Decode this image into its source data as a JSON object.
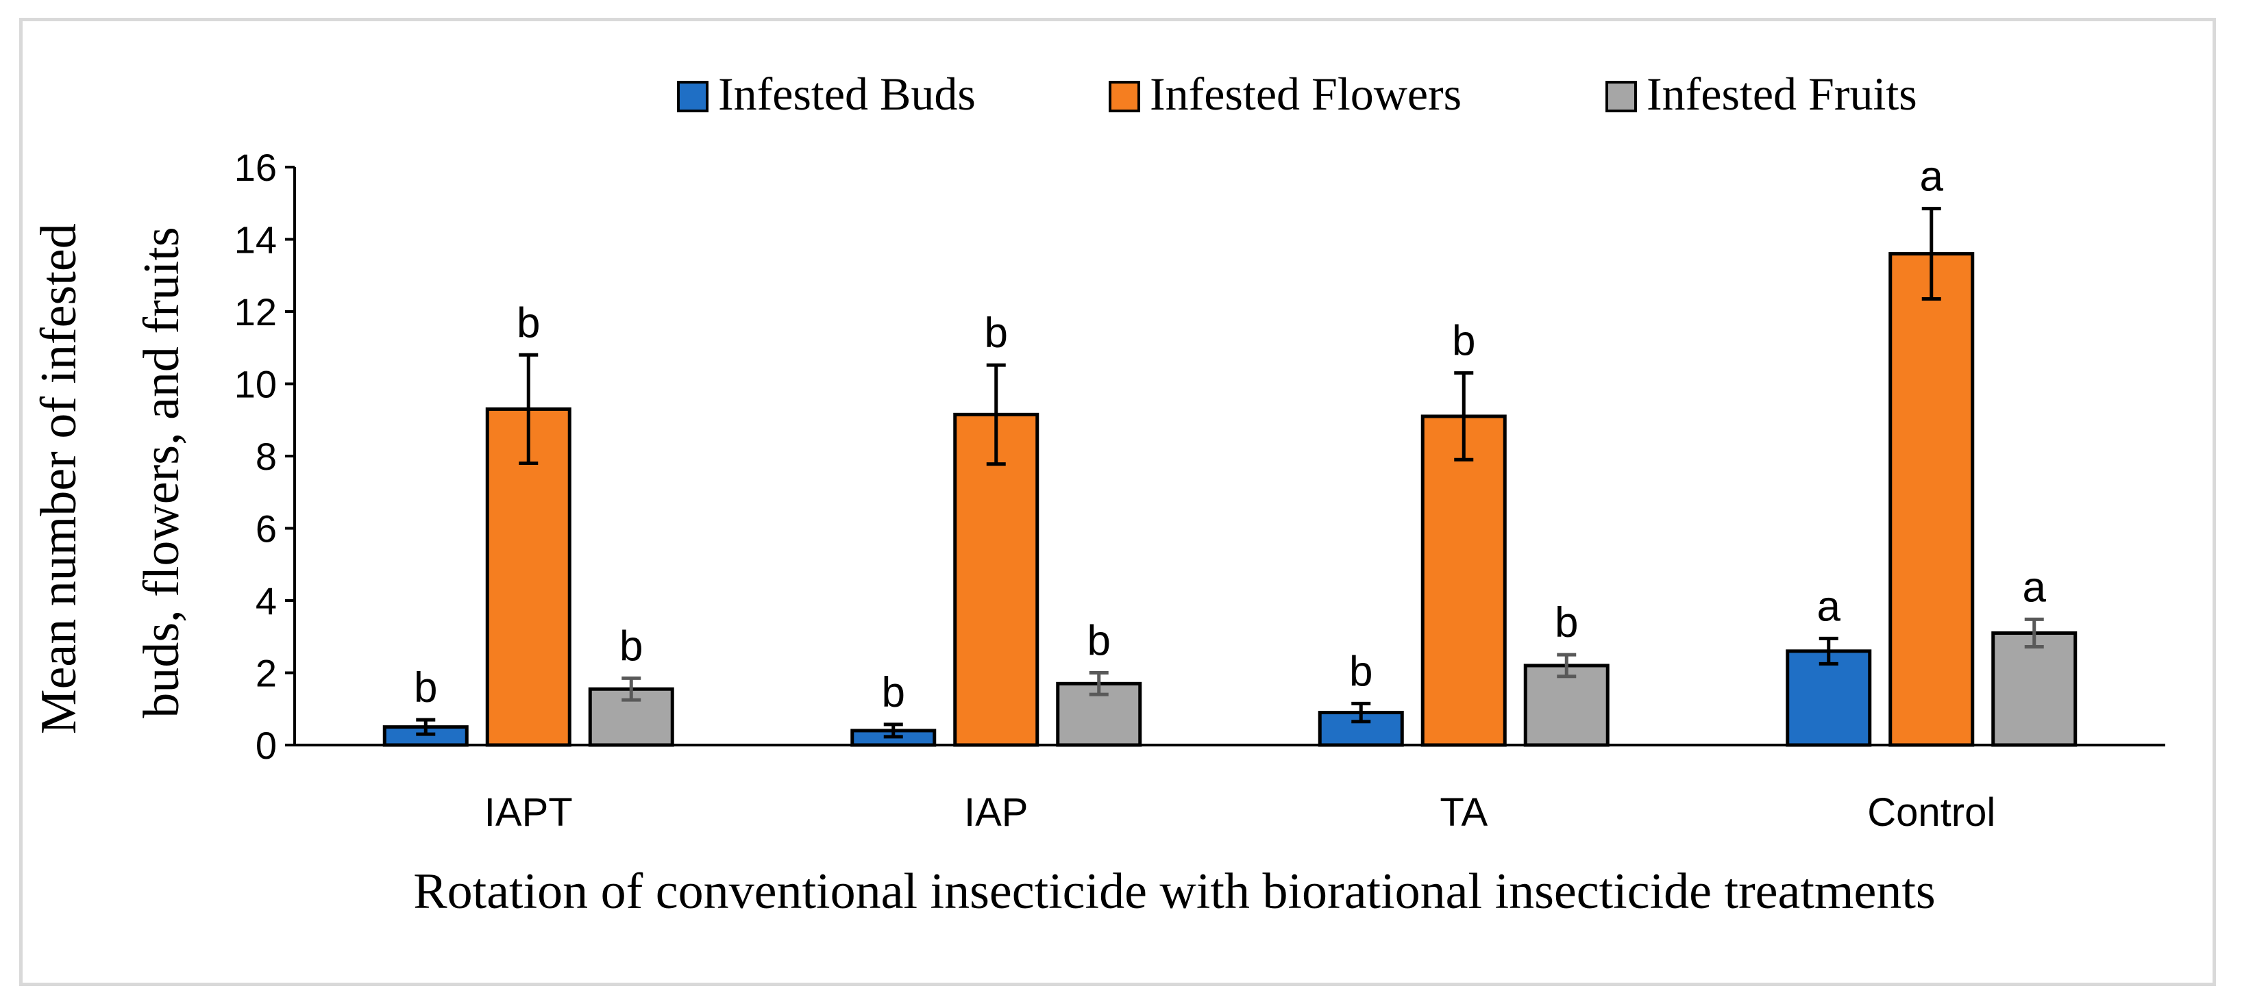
{
  "chart_data": {
    "type": "bar",
    "title": "",
    "xlabel": "Rotation of conventional insecticide with biorational insecticide treatments",
    "ylabel": "Mean number of infested buds, flowers, and fruits",
    "ylabel_lines": [
      "Mean number of infested",
      "buds, flowers, and fruits"
    ],
    "ylim": [
      0,
      16
    ],
    "yticks": [
      0,
      2,
      4,
      6,
      8,
      10,
      12,
      14,
      16
    ],
    "categories": [
      "IAPT",
      "IAP",
      "TA",
      "Control"
    ],
    "legend_position": "top",
    "grid": false,
    "series": [
      {
        "name": "Infested Buds",
        "color": "#1f6fc5",
        "errcolor": "#000000",
        "values": [
          0.5,
          0.4,
          0.9,
          2.6
        ],
        "errors": [
          0.2,
          0.17,
          0.25,
          0.35
        ],
        "letters": [
          "b",
          "b",
          "b",
          "a"
        ]
      },
      {
        "name": "Infested Flowers",
        "color": "#f57e20",
        "errcolor": "#000000",
        "values": [
          9.3,
          9.15,
          9.1,
          13.6
        ],
        "errors": [
          1.5,
          1.37,
          1.2,
          1.25
        ],
        "letters": [
          "b",
          "b",
          "b",
          "a"
        ]
      },
      {
        "name": "Infested Fruits",
        "color": "#a6a6a6",
        "errcolor": "#595959",
        "values": [
          1.55,
          1.7,
          2.2,
          3.1
        ],
        "errors": [
          0.3,
          0.3,
          0.3,
          0.38
        ],
        "letters": [
          "b",
          "b",
          "b",
          "a"
        ]
      }
    ]
  }
}
